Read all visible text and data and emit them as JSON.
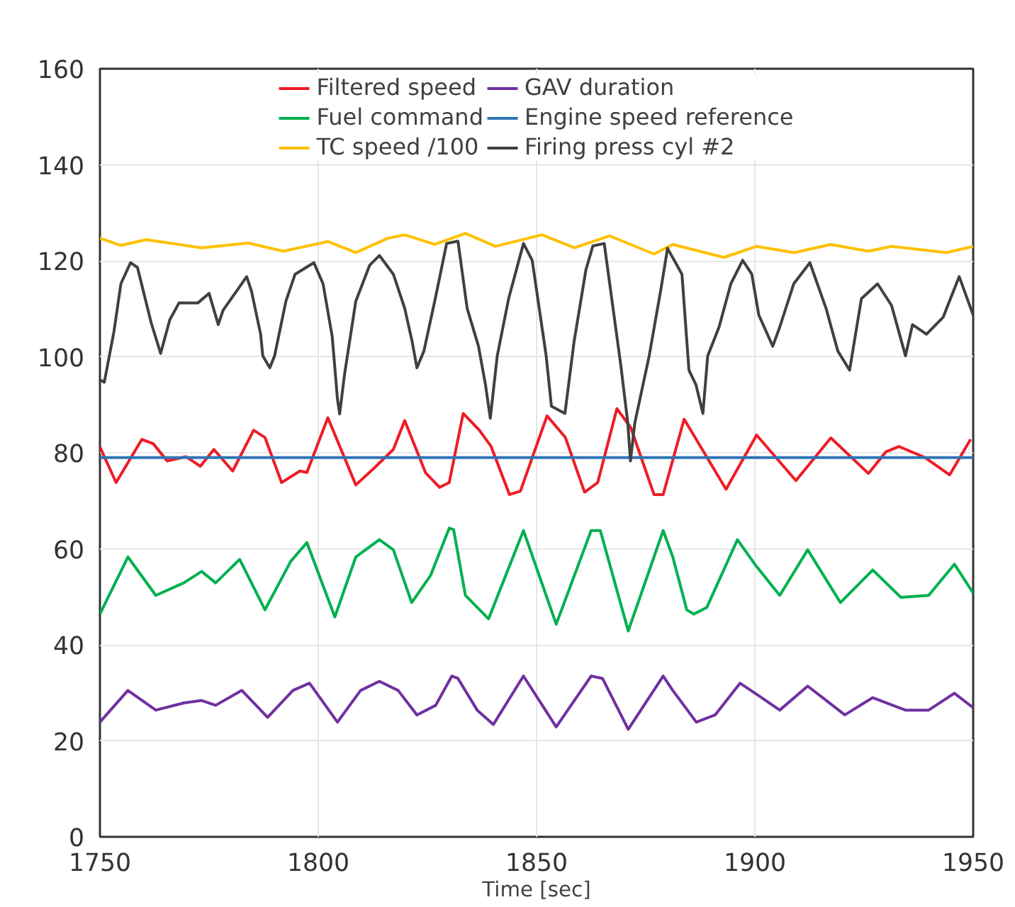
{
  "chart_data": {
    "type": "line",
    "xlabel": "Time [sec]",
    "xlim": [
      1750,
      1950
    ],
    "xticks": [
      1750,
      1800,
      1850,
      1900,
      1950
    ],
    "ylim": [
      0,
      160
    ],
    "yticks": [
      0,
      20,
      40,
      60,
      80,
      100,
      120,
      140,
      160
    ],
    "grid": true,
    "legend": "top",
    "line_style": "solid",
    "marker": "none",
    "series": [
      {
        "name": "Filtered speed",
        "color": "#ee1c25",
        "x": [
          1750,
          1753.7,
          1759.6,
          1762.2,
          1765.4,
          1769.7,
          1773,
          1776.1,
          1780.4,
          1785.2,
          1787.8,
          1791.6,
          1795.8,
          1797.4,
          1802.2,
          1808.6,
          1812.9,
          1817.2,
          1819.8,
          1824.6,
          1827.8,
          1830,
          1833.2,
          1836.9,
          1839.6,
          1843.8,
          1846.3,
          1852.4,
          1856.6,
          1861,
          1864,
          1868.4,
          1871.6,
          1876.9,
          1879,
          1883.8,
          1893.4,
          1900.4,
          1909.4,
          1917.4,
          1926,
          1930,
          1933,
          1939,
          1944.6,
          1949.4
        ],
        "values": [
          81.2,
          73.8,
          82.8,
          81.9,
          78.3,
          79.2,
          77.2,
          80.7,
          76.2,
          84.7,
          83.2,
          73.8,
          76.2,
          75.9,
          87.3,
          73.3,
          76.9,
          80.7,
          86.7,
          75.8,
          72.8,
          73.8,
          88.2,
          84.7,
          81.3,
          71.3,
          72,
          87.7,
          83.2,
          71.8,
          73.8,
          89.2,
          85.2,
          71.3,
          71.3,
          87,
          72.4,
          83.7,
          74.2,
          83.1,
          75.7,
          80.2,
          81.3,
          79,
          75.4,
          82.8
        ]
      },
      {
        "name": "GAV duration",
        "color": "#7030a0",
        "x": [
          1750,
          1756.4,
          1762.8,
          1769.2,
          1773.3,
          1776.5,
          1782.5,
          1788.4,
          1794.2,
          1798,
          1804.4,
          1809.7,
          1814,
          1818.3,
          1822.6,
          1826.9,
          1830.6,
          1832,
          1836.4,
          1840.1,
          1847,
          1854.5,
          1862.5,
          1865.1,
          1871,
          1879,
          1881.2,
          1886.6,
          1890.9,
          1896.6,
          1900.9,
          1905.7,
          1912.1,
          1920.6,
          1927,
          1934.5,
          1939.8,
          1945.7,
          1950
        ],
        "values": [
          23.9,
          30.5,
          26.4,
          27.9,
          28.4,
          27.4,
          30.5,
          24.9,
          30.5,
          32,
          23.9,
          30.5,
          32.4,
          30.5,
          25.4,
          27.4,
          33.5,
          33,
          26.4,
          23.4,
          33.5,
          22.9,
          33.5,
          33,
          22.4,
          33.5,
          30.5,
          23.9,
          25.4,
          32,
          29.4,
          26.4,
          31.4,
          25.4,
          29,
          26.4,
          26.4,
          29.9,
          26.9
        ]
      },
      {
        "name": "Fuel command",
        "color": "#00b050",
        "x": [
          1750,
          1756.4,
          1762.8,
          1769.2,
          1773.3,
          1776.5,
          1782,
          1787.8,
          1793.7,
          1797.4,
          1803.8,
          1808.6,
          1814,
          1817.2,
          1821.4,
          1825.7,
          1830,
          1831,
          1833.7,
          1839,
          1847,
          1854.5,
          1862.5,
          1864.6,
          1871,
          1879,
          1881.2,
          1884.4,
          1886,
          1889,
          1896,
          1900.4,
          1905.7,
          1912.1,
          1919.6,
          1927,
          1933.4,
          1939.8,
          1945.7,
          1950
        ],
        "values": [
          46.4,
          58.3,
          50.3,
          52.9,
          55.3,
          52.9,
          57.8,
          47.3,
          57.4,
          61.3,
          45.8,
          58.3,
          61.9,
          59.8,
          48.8,
          54.4,
          64.3,
          64,
          50.3,
          45.4,
          63.8,
          44.3,
          63.8,
          63.8,
          42.9,
          63.8,
          58.3,
          47.3,
          46.4,
          47.8,
          61.9,
          56.3,
          50.3,
          59.8,
          48.8,
          55.6,
          49.9,
          50.3,
          56.8,
          50.8
        ]
      },
      {
        "name": "Engine speed reference",
        "color": "#2e75b6",
        "x": [
          1750,
          1950
        ],
        "values": [
          79,
          79
        ]
      },
      {
        "name": "TC speed /100",
        "color": "#ffc000",
        "x": [
          1750,
          1754.8,
          1760.6,
          1773.3,
          1784,
          1792,
          1802.2,
          1808.6,
          1816,
          1819.8,
          1826.7,
          1833.7,
          1840.6,
          1851.2,
          1858.7,
          1866.7,
          1876.9,
          1881.2,
          1892.9,
          1900.4,
          1909,
          1917.4,
          1926,
          1931.3,
          1943.9,
          1950
        ],
        "values": [
          124.7,
          123.2,
          124.4,
          122.7,
          123.7,
          122,
          124,
          121.7,
          124.7,
          125.4,
          123.4,
          125.7,
          123,
          125.4,
          122.7,
          125.2,
          121.4,
          123.4,
          120.7,
          123,
          121.7,
          123.4,
          122,
          123,
          121.7,
          123
        ]
      },
      {
        "name": "Firing press cyl #2",
        "color": "#404040",
        "x": [
          1750,
          1751,
          1753.2,
          1754.8,
          1757,
          1758.6,
          1761.7,
          1763.9,
          1766,
          1768.1,
          1772.4,
          1775,
          1777.1,
          1778.2,
          1782,
          1783.6,
          1784.7,
          1786.8,
          1787.3,
          1788.9,
          1790,
          1792.6,
          1794.7,
          1799,
          1801.1,
          1803.2,
          1804.4,
          1804.9,
          1806,
          1808.6,
          1811.8,
          1814,
          1817.2,
          1819.8,
          1821.5,
          1822.6,
          1824.2,
          1826.8,
          1829.4,
          1832,
          1834.1,
          1836.7,
          1838.3,
          1839.4,
          1841,
          1843.6,
          1847,
          1849,
          1852.2,
          1853.4,
          1856.5,
          1858.6,
          1861.3,
          1862.9,
          1865.5,
          1869.3,
          1870.9,
          1871.5,
          1872.5,
          1875.8,
          1878.5,
          1880,
          1883.3,
          1884.9,
          1886.5,
          1888.1,
          1889.2,
          1891.8,
          1894.5,
          1897.2,
          1899.3,
          1900.9,
          1904.1,
          1905.7,
          1908.9,
          1912.6,
          1916.3,
          1919,
          1921.7,
          1924.4,
          1928.1,
          1931.3,
          1934.5,
          1936.1,
          1939.3,
          1943.1,
          1946.8,
          1950
        ],
        "values": [
          95.2,
          94.7,
          105.2,
          115.2,
          119.6,
          118.6,
          107.2,
          100.7,
          107.7,
          111.2,
          111.2,
          113.2,
          106.7,
          109.7,
          114.6,
          116.7,
          113.7,
          104.7,
          100.2,
          97.7,
          100.2,
          111.6,
          117.2,
          119.6,
          115.2,
          104.2,
          91.2,
          88.1,
          96.2,
          111.6,
          119.1,
          121.1,
          117.2,
          110.1,
          103.2,
          97.7,
          101.2,
          112.1,
          123.6,
          124.1,
          110.1,
          102.2,
          94.2,
          87.2,
          100.2,
          112.1,
          123.6,
          120.1,
          100.2,
          89.7,
          88.2,
          103.2,
          118.1,
          123.1,
          123.6,
          98.2,
          86.2,
          78.3,
          86.2,
          100.2,
          114.2,
          122.6,
          117.2,
          97.2,
          94.2,
          88.2,
          100.2,
          106.2,
          115.2,
          120.1,
          117.2,
          108.7,
          102.2,
          106.2,
          115.2,
          119.6,
          110.1,
          101.2,
          97.2,
          112.1,
          115.2,
          110.7,
          100.2,
          106.7,
          104.7,
          108.2,
          116.7,
          108.7
        ]
      }
    ]
  }
}
